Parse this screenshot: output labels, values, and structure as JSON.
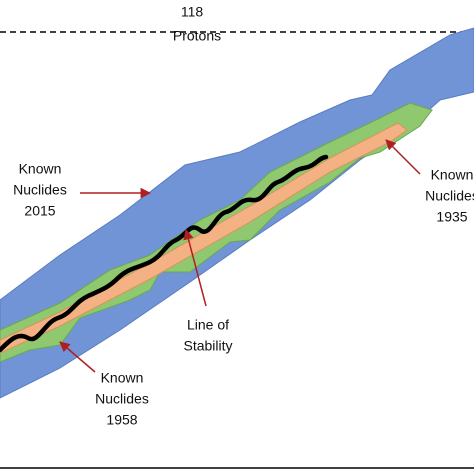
{
  "top_label": {
    "number": "118",
    "caption": "Protons"
  },
  "labels": [
    {
      "lines": [
        "Known",
        "Nuclides",
        "2015"
      ]
    },
    {
      "lines": [
        "Known",
        "Nuclides",
        "1935"
      ]
    },
    {
      "lines": [
        "Line of",
        "Stability"
      ]
    },
    {
      "lines": [
        "Known",
        "Nuclides",
        "1958"
      ]
    }
  ]
}
